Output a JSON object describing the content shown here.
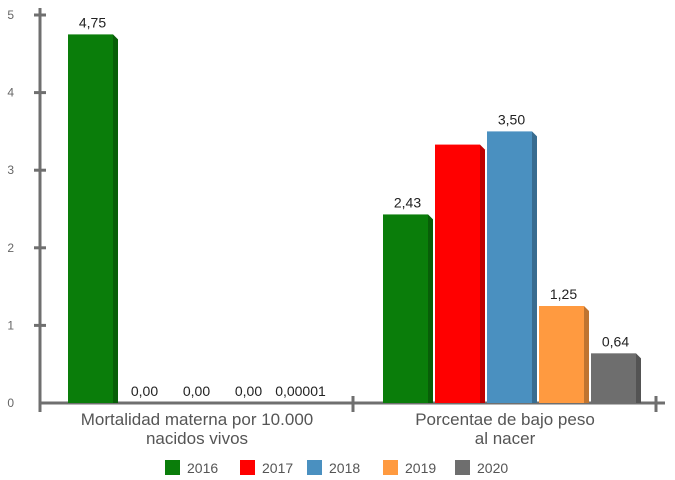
{
  "chart_data": {
    "type": "bar",
    "title": "",
    "xlabel": "",
    "ylabel": "",
    "ylim": [
      0,
      5
    ],
    "yticks": [
      "0",
      "1",
      "2",
      "3",
      "4",
      "5"
    ],
    "grid": false,
    "legend_position": "bottom",
    "categories": [
      [
        "Mortalidad materna por 10.000",
        "nacidos vivos"
      ],
      [
        "Porcentae de bajo peso",
        "al nacer"
      ]
    ],
    "series": [
      {
        "name": "2016",
        "color": "#0a7d0a",
        "values": [
          4.75,
          2.43
        ],
        "labels": [
          "4,75",
          "2,43"
        ]
      },
      {
        "name": "2017",
        "color": "#ff0000",
        "values": [
          0,
          3.33
        ],
        "labels": [
          "0,00",
          null
        ]
      },
      {
        "name": "2018",
        "color": "#4a90c0",
        "values": [
          0,
          3.5
        ],
        "labels": [
          "0,00",
          "3,50"
        ]
      },
      {
        "name": "2019",
        "color": "#ff9a40",
        "values": [
          0,
          1.25
        ],
        "labels": [
          "0,00",
          "1,25"
        ]
      },
      {
        "name": "2020",
        "color": "#6e6e6e",
        "values": [
          1e-05,
          0.64
        ],
        "labels": [
          "0,00001",
          "0,64"
        ]
      }
    ]
  }
}
